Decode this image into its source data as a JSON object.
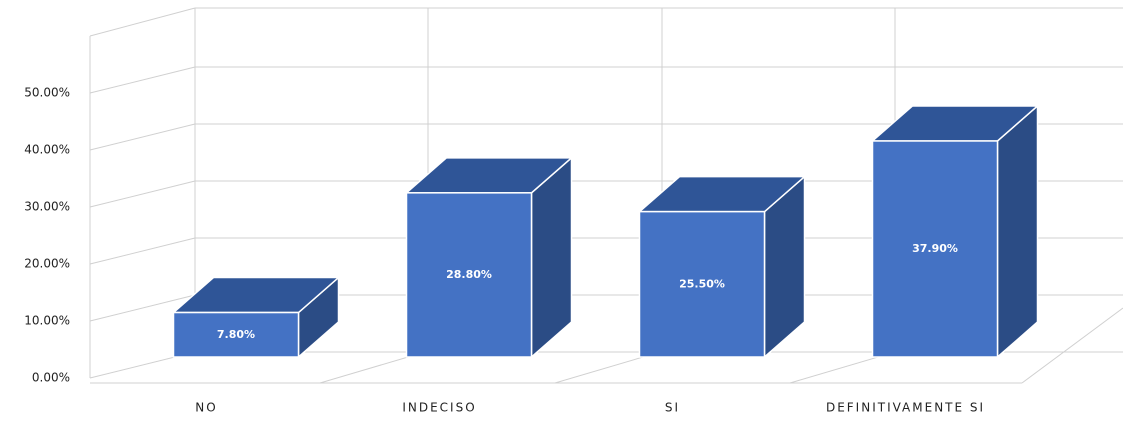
{
  "chart_data": {
    "type": "bar3d",
    "categories": [
      "NO",
      "INDECISO",
      "SI",
      "DEFINITIVAMENTE SI"
    ],
    "values": [
      7.8,
      28.8,
      25.5,
      37.9
    ],
    "value_labels": [
      "7.80%",
      "28.80%",
      "25.50%",
      "37.90%"
    ],
    "color": "#4472c4",
    "ylim": [
      0,
      60
    ],
    "yticks": [
      {
        "value": 0,
        "label": "0.00%"
      },
      {
        "value": 10,
        "label": "10.00%"
      },
      {
        "value": 20,
        "label": "20.00%"
      },
      {
        "value": 30,
        "label": "30.00%"
      },
      {
        "value": 40,
        "label": "40.00%"
      },
      {
        "value": 50,
        "label": "50.00%"
      }
    ],
    "grid": true
  }
}
